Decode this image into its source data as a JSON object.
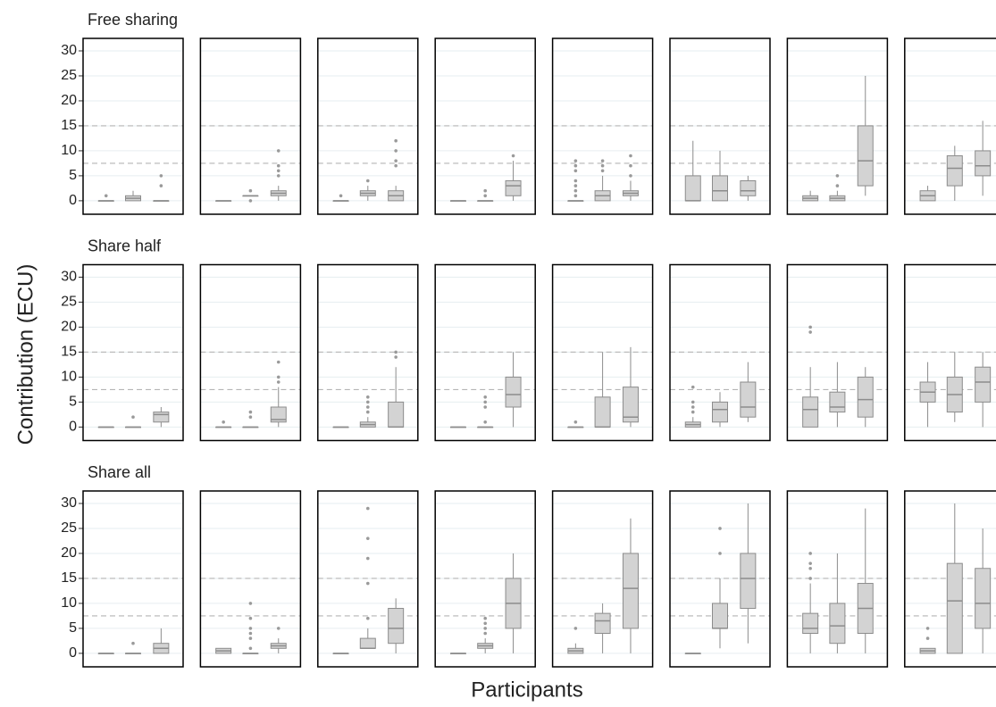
{
  "chart_data": {
    "type": "box",
    "y_label": "Contribution (ECU)",
    "x_label": "Participants",
    "ylim": [
      -2.7,
      32.5
    ],
    "yticks": [
      0,
      5,
      10,
      15,
      20,
      25,
      30
    ],
    "grid": true,
    "reference_lines": [
      7.5,
      15
    ],
    "box_color": "#d3d3d3",
    "line_color": "#8c8c8c",
    "facets": [
      {
        "title": "Free sharing",
        "panels": [
          {
            "boxes": [
              {
                "stats": [
                  0,
                  0,
                  0,
                  0,
                  0
                ],
                "outliers": [
                  1
                ]
              },
              {
                "stats": [
                  0,
                  0,
                  0.5,
                  1,
                  2
                ],
                "outliers": []
              },
              {
                "stats": [
                  0,
                  0,
                  0,
                  0,
                  0
                ],
                "outliers": [
                  3,
                  5
                ]
              }
            ]
          },
          {
            "boxes": [
              {
                "stats": [
                  0,
                  0,
                  0,
                  0,
                  0
                ],
                "outliers": []
              },
              {
                "stats": [
                  1,
                  1,
                  1,
                  1,
                  1
                ],
                "outliers": [
                  0,
                  2
                ]
              },
              {
                "stats": [
                  0,
                  1,
                  1.5,
                  2,
                  3
                ],
                "outliers": [
                  5,
                  6,
                  7,
                  10
                ]
              }
            ]
          },
          {
            "boxes": [
              {
                "stats": [
                  0,
                  0,
                  0,
                  0,
                  0
                ],
                "outliers": [
                  1
                ]
              },
              {
                "stats": [
                  0,
                  1,
                  1.5,
                  2,
                  3
                ],
                "outliers": [
                  4
                ]
              },
              {
                "stats": [
                  0,
                  0,
                  1,
                  2,
                  3
                ],
                "outliers": [
                  7,
                  8,
                  10,
                  12
                ]
              }
            ]
          },
          {
            "boxes": [
              {
                "stats": [
                  0,
                  0,
                  0,
                  0,
                  0
                ],
                "outliers": []
              },
              {
                "stats": [
                  0,
                  0,
                  0,
                  0,
                  0
                ],
                "outliers": [
                  1,
                  2
                ]
              },
              {
                "stats": [
                  0,
                  1,
                  3,
                  4,
                  8
                ],
                "outliers": [
                  9
                ]
              }
            ]
          },
          {
            "boxes": [
              {
                "stats": [
                  0,
                  0,
                  0,
                  0,
                  0
                ],
                "outliers": [
                  1,
                  2,
                  3,
                  4,
                  6,
                  7,
                  8
                ]
              },
              {
                "stats": [
                  0,
                  0,
                  1,
                  2,
                  5
                ],
                "outliers": [
                  6,
                  7,
                  8
                ]
              },
              {
                "stats": [
                  0,
                  1,
                  1.5,
                  2,
                  4
                ],
                "outliers": [
                  5,
                  7,
                  9
                ]
              }
            ]
          },
          {
            "boxes": [
              {
                "stats": [
                  0,
                  0,
                  0,
                  5,
                  12
                ],
                "outliers": []
              },
              {
                "stats": [
                  0,
                  0,
                  2,
                  5,
                  10
                ],
                "outliers": []
              },
              {
                "stats": [
                  0,
                  1,
                  2,
                  4,
                  5
                ],
                "outliers": []
              }
            ]
          },
          {
            "boxes": [
              {
                "stats": [
                  0,
                  0,
                  0.5,
                  1,
                  2
                ],
                "outliers": []
              },
              {
                "stats": [
                  0,
                  0,
                  0.5,
                  1,
                  2
                ],
                "outliers": [
                  3,
                  5
                ]
              },
              {
                "stats": [
                  1,
                  3,
                  8,
                  15,
                  25
                ],
                "outliers": []
              }
            ]
          },
          {
            "boxes": [
              {
                "stats": [
                  0,
                  0,
                  1,
                  2,
                  3
                ],
                "outliers": []
              },
              {
                "stats": [
                  0,
                  3,
                  6.5,
                  9,
                  11
                ],
                "outliers": []
              },
              {
                "stats": [
                  1,
                  5,
                  7,
                  10,
                  16
                ],
                "outliers": []
              }
            ]
          }
        ]
      },
      {
        "title": "Share half",
        "panels": [
          {
            "boxes": [
              {
                "stats": [
                  0,
                  0,
                  0,
                  0,
                  0
                ],
                "outliers": []
              },
              {
                "stats": [
                  0,
                  0,
                  0,
                  0,
                  0
                ],
                "outliers": [
                  2
                ]
              },
              {
                "stats": [
                  0,
                  1,
                  2.5,
                  3,
                  4
                ],
                "outliers": []
              }
            ]
          },
          {
            "boxes": [
              {
                "stats": [
                  0,
                  0,
                  0,
                  0,
                  0
                ],
                "outliers": [
                  1
                ]
              },
              {
                "stats": [
                  0,
                  0,
                  0,
                  0,
                  0
                ],
                "outliers": [
                  2,
                  3
                ]
              },
              {
                "stats": [
                  0,
                  1,
                  1.5,
                  4,
                  8
                ],
                "outliers": [
                  9,
                  10,
                  13
                ]
              }
            ]
          },
          {
            "boxes": [
              {
                "stats": [
                  0,
                  0,
                  0,
                  0,
                  0
                ],
                "outliers": []
              },
              {
                "stats": [
                  0,
                  0,
                  0.5,
                  1,
                  2
                ],
                "outliers": [
                  3,
                  4,
                  5,
                  6
                ]
              },
              {
                "stats": [
                  0,
                  0,
                  0,
                  5,
                  12
                ],
                "outliers": [
                  14,
                  15
                ]
              }
            ]
          },
          {
            "boxes": [
              {
                "stats": [
                  0,
                  0,
                  0,
                  0,
                  0
                ],
                "outliers": []
              },
              {
                "stats": [
                  0,
                  0,
                  0,
                  0,
                  0
                ],
                "outliers": [
                  1,
                  4,
                  5,
                  6
                ]
              },
              {
                "stats": [
                  0,
                  4,
                  6.5,
                  10,
                  15
                ],
                "outliers": []
              }
            ]
          },
          {
            "boxes": [
              {
                "stats": [
                  0,
                  0,
                  0,
                  0,
                  0
                ],
                "outliers": [
                  1
                ]
              },
              {
                "stats": [
                  0,
                  0,
                  0,
                  6,
                  15
                ],
                "outliers": []
              },
              {
                "stats": [
                  0,
                  1,
                  2,
                  8,
                  16
                ],
                "outliers": []
              }
            ]
          },
          {
            "boxes": [
              {
                "stats": [
                  0,
                  0,
                  0.5,
                  1,
                  2
                ],
                "outliers": [
                  3,
                  4,
                  5,
                  8
                ]
              },
              {
                "stats": [
                  0,
                  1,
                  3.5,
                  5,
                  7
                ],
                "outliers": []
              },
              {
                "stats": [
                  1,
                  2,
                  4,
                  9,
                  13
                ],
                "outliers": []
              }
            ]
          },
          {
            "boxes": [
              {
                "stats": [
                  0,
                  0,
                  3.5,
                  6,
                  12
                ],
                "outliers": [
                  19,
                  20
                ]
              },
              {
                "stats": [
                  0,
                  3,
                  4,
                  7,
                  13
                ],
                "outliers": []
              },
              {
                "stats": [
                  0,
                  2,
                  5.5,
                  10,
                  12
                ],
                "outliers": []
              }
            ]
          },
          {
            "boxes": [
              {
                "stats": [
                  0,
                  5,
                  7,
                  9,
                  13
                ],
                "outliers": []
              },
              {
                "stats": [
                  1,
                  3,
                  6.5,
                  10,
                  15
                ],
                "outliers": []
              },
              {
                "stats": [
                  0,
                  5,
                  9,
                  12,
                  15
                ],
                "outliers": []
              }
            ]
          }
        ]
      },
      {
        "title": "Share all",
        "panels": [
          {
            "boxes": [
              {
                "stats": [
                  0,
                  0,
                  0,
                  0,
                  0
                ],
                "outliers": []
              },
              {
                "stats": [
                  0,
                  0,
                  0,
                  0,
                  0
                ],
                "outliers": [
                  2
                ]
              },
              {
                "stats": [
                  0,
                  0,
                  1,
                  2,
                  5
                ],
                "outliers": []
              }
            ]
          },
          {
            "boxes": [
              {
                "stats": [
                  0,
                  0,
                  0.5,
                  1,
                  1
                ],
                "outliers": []
              },
              {
                "stats": [
                  0,
                  0,
                  0,
                  0,
                  0
                ],
                "outliers": [
                  1,
                  3,
                  4,
                  5,
                  7,
                  10
                ]
              },
              {
                "stats": [
                  0,
                  1,
                  1.5,
                  2,
                  3
                ],
                "outliers": [
                  5
                ]
              }
            ]
          },
          {
            "boxes": [
              {
                "stats": [
                  0,
                  0,
                  0,
                  0,
                  0
                ],
                "outliers": []
              },
              {
                "stats": [
                  1,
                  1,
                  1,
                  3,
                  5
                ],
                "outliers": [
                  7,
                  14,
                  19,
                  23,
                  29
                ]
              },
              {
                "stats": [
                  0,
                  2,
                  5,
                  9,
                  11
                ],
                "outliers": []
              }
            ]
          },
          {
            "boxes": [
              {
                "stats": [
                  0,
                  0,
                  0,
                  0,
                  0
                ],
                "outliers": []
              },
              {
                "stats": [
                  0,
                  1,
                  1.5,
                  2,
                  3
                ],
                "outliers": [
                  4,
                  5,
                  6,
                  7
                ]
              },
              {
                "stats": [
                  0,
                  5,
                  10,
                  15,
                  20
                ],
                "outliers": []
              }
            ]
          },
          {
            "boxes": [
              {
                "stats": [
                  0,
                  0,
                  0.5,
                  1,
                  2
                ],
                "outliers": [
                  5
                ]
              },
              {
                "stats": [
                  0,
                  4,
                  6.5,
                  8,
                  10
                ],
                "outliers": []
              },
              {
                "stats": [
                  0,
                  5,
                  13,
                  20,
                  27
                ],
                "outliers": []
              }
            ]
          },
          {
            "boxes": [
              {
                "stats": [
                  0,
                  0,
                  0,
                  0,
                  0
                ],
                "outliers": []
              },
              {
                "stats": [
                  1,
                  5,
                  5,
                  10,
                  15
                ],
                "outliers": [
                  20,
                  25
                ]
              },
              {
                "stats": [
                  2,
                  9,
                  15,
                  20,
                  30
                ],
                "outliers": []
              }
            ]
          },
          {
            "boxes": [
              {
                "stats": [
                  0,
                  4,
                  5,
                  8,
                  14
                ],
                "outliers": [
                  15,
                  17,
                  18,
                  20
                ]
              },
              {
                "stats": [
                  0,
                  2,
                  5.5,
                  10,
                  20
                ],
                "outliers": []
              },
              {
                "stats": [
                  0,
                  4,
                  9,
                  14,
                  29
                ],
                "outliers": []
              }
            ]
          },
          {
            "boxes": [
              {
                "stats": [
                  0,
                  0,
                  0.5,
                  1,
                  1
                ],
                "outliers": [
                  3,
                  5
                ]
              },
              {
                "stats": [
                  0,
                  0,
                  10.5,
                  18,
                  30
                ],
                "outliers": []
              },
              {
                "stats": [
                  0,
                  5,
                  10,
                  17,
                  25
                ],
                "outliers": []
              }
            ]
          }
        ]
      }
    ]
  }
}
